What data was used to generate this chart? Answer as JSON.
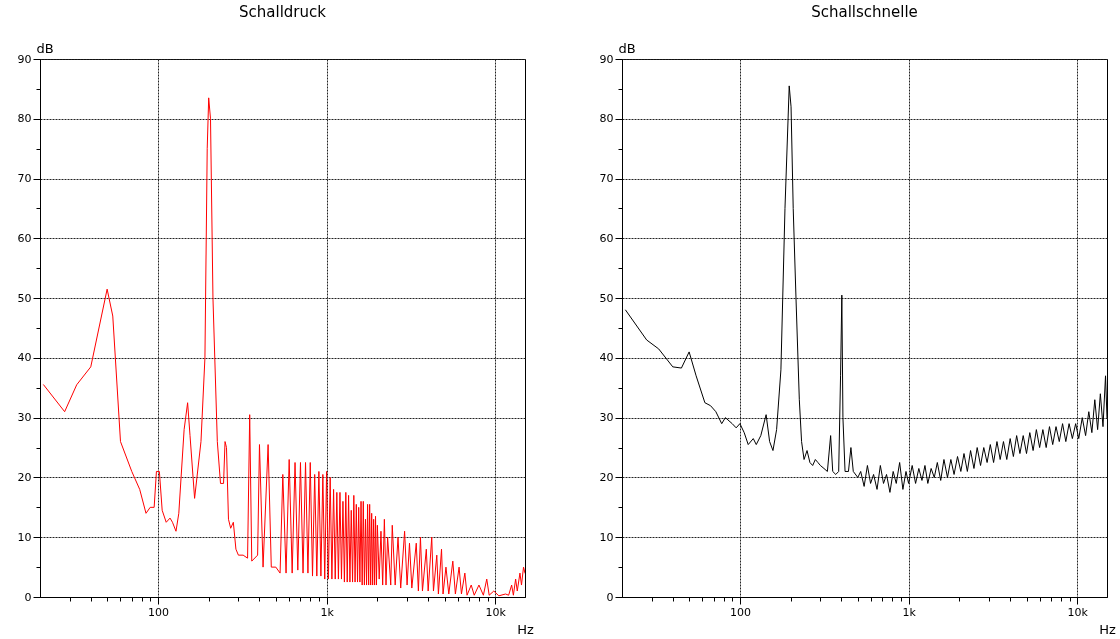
{
  "chart_data": [
    {
      "type": "line",
      "title": "Schalldruck",
      "xlabel": "Hz",
      "ylabel": "dB",
      "color": "#ff0000",
      "log": "x",
      "grid": true,
      "xlim": [
        20,
        15000
      ],
      "ylim": [
        0,
        90
      ],
      "xticks": [
        {
          "value": 30,
          "label": null
        },
        {
          "value": 40,
          "label": null
        },
        {
          "value": 50,
          "label": null
        },
        {
          "value": 60,
          "label": null
        },
        {
          "value": 70,
          "label": null
        },
        {
          "value": 80,
          "label": null
        },
        {
          "value": 90,
          "label": null
        },
        100,
        {
          "value": 200,
          "label": null
        },
        {
          "value": 300,
          "label": null
        },
        {
          "value": 400,
          "label": null
        },
        {
          "value": 500,
          "label": null
        },
        {
          "value": 600,
          "label": null
        },
        {
          "value": 700,
          "label": null
        },
        {
          "value": 800,
          "label": null
        },
        {
          "value": 900,
          "label": null
        },
        {
          "value": 1000,
          "label": "1k"
        },
        {
          "value": 2000,
          "label": null
        },
        {
          "value": 3000,
          "label": null
        },
        {
          "value": 4000,
          "label": null
        },
        {
          "value": 5000,
          "label": null
        },
        {
          "value": 6000,
          "label": null
        },
        {
          "value": 7000,
          "label": null
        },
        {
          "value": 8000,
          "label": null
        },
        {
          "value": 9000,
          "label": null
        },
        {
          "value": 10000,
          "label": "10k"
        }
      ],
      "yticks": [
        0,
        {
          "value": 5,
          "label": null
        },
        10,
        {
          "value": 15,
          "label": null
        },
        20,
        {
          "value": 25,
          "label": null
        },
        30,
        {
          "value": 35,
          "label": null
        },
        40,
        {
          "value": 45,
          "label": null
        },
        50,
        {
          "value": 55,
          "label": null
        },
        60,
        {
          "value": 65,
          "label": null
        },
        70,
        {
          "value": 75,
          "label": null
        },
        80,
        {
          "value": 85,
          "label": null
        },
        90
      ],
      "x": [
        21,
        28,
        33,
        40,
        50,
        54,
        60,
        70,
        78,
        85,
        90,
        95,
        98,
        102,
        106,
        112,
        118,
        122,
        128,
        133,
        143,
        150,
        155,
        165,
        180,
        190,
        196,
        200,
        205,
        212,
        225,
        235,
        245,
        250,
        255,
        262,
        270,
        280,
        290,
        300,
        320,
        340,
        350,
        360,
        390,
        400,
        420,
        450,
        470,
        500,
        530,
        550,
        575,
        600,
        625,
        650,
        675,
        700,
        725,
        750,
        775,
        800,
        825,
        850,
        875,
        900,
        925,
        950,
        975,
        1000,
        1025,
        1050,
        1075,
        1100,
        1125,
        1150,
        1175,
        1200,
        1225,
        1250,
        1275,
        1300,
        1325,
        1350,
        1375,
        1400,
        1425,
        1450,
        1475,
        1500,
        1525,
        1550,
        1575,
        1600,
        1625,
        1650,
        1675,
        1700,
        1725,
        1750,
        1775,
        1800,
        1825,
        1850,
        1875,
        1900,
        1925,
        1950,
        1975,
        2000,
        2050,
        2100,
        2150,
        2200,
        2250,
        2300,
        2400,
        2450,
        2550,
        2650,
        2750,
        2900,
        3000,
        3100,
        3200,
        3400,
        3500,
        3600,
        3700,
        3900,
        4000,
        4200,
        4300,
        4500,
        4600,
        4800,
        4900,
        5100,
        5300,
        5600,
        5800,
        6100,
        6300,
        6600,
        6800,
        7200,
        7500,
        8000,
        8500,
        8900,
        9200,
        9800,
        10500,
        11500,
        12000,
        12500,
        12800,
        13200,
        13500,
        14000,
        14300,
        14700,
        15000
      ],
      "values": [
        35.5,
        31,
        35.5,
        38.5,
        51.5,
        47,
        26,
        21,
        18,
        14,
        15,
        15,
        21,
        21,
        14.5,
        12.5,
        13.2,
        12.5,
        11,
        14,
        28,
        32.5,
        27,
        16.5,
        26,
        40,
        75,
        83.5,
        80,
        50,
        26,
        19,
        19,
        26,
        25,
        13,
        11.5,
        12.5,
        8,
        7,
        7,
        6.5,
        30.5,
        6,
        7,
        25.5,
        5,
        25.5,
        5,
        5,
        4,
        20.5,
        4,
        23,
        4,
        22.5,
        4.5,
        22.5,
        4,
        22.5,
        4,
        22.5,
        3.5,
        20.5,
        3.5,
        21,
        3.5,
        20.5,
        3,
        21,
        3,
        20,
        3,
        18,
        3,
        17.5,
        3,
        17.5,
        3,
        16,
        2.5,
        17.5,
        2.5,
        17,
        2.5,
        14.5,
        2.5,
        17,
        2.5,
        15.5,
        2.5,
        15,
        2.5,
        16,
        2,
        16,
        2,
        13,
        2,
        15.5,
        2,
        15.5,
        2,
        14,
        2,
        13,
        2,
        13.5,
        2,
        12,
        3,
        11,
        2,
        13,
        2,
        10,
        2,
        12,
        2,
        10,
        1.5,
        11,
        2,
        9,
        1.5,
        9,
        1,
        10,
        1,
        8,
        1,
        10,
        1,
        7,
        0.5,
        8,
        0.5,
        5,
        0.5,
        6,
        0.5,
        5,
        0.5,
        4,
        0.3,
        2,
        0.3,
        2,
        0.3,
        3,
        0.3,
        1,
        0.2,
        0.5,
        0.3,
        2,
        0.3,
        3,
        1,
        4,
        2,
        5,
        4
      ]
    },
    {
      "type": "line",
      "title": "Schallschnelle",
      "xlabel": "Hz",
      "ylabel": "dB",
      "color": "#000000",
      "log": "x",
      "grid": true,
      "xlim": [
        20,
        15000
      ],
      "ylim": [
        0,
        90
      ],
      "xticks": [
        {
          "value": 30,
          "label": null
        },
        {
          "value": 40,
          "label": null
        },
        {
          "value": 50,
          "label": null
        },
        {
          "value": 60,
          "label": null
        },
        {
          "value": 70,
          "label": null
        },
        {
          "value": 80,
          "label": null
        },
        {
          "value": 90,
          "label": null
        },
        100,
        {
          "value": 200,
          "label": null
        },
        {
          "value": 300,
          "label": null
        },
        {
          "value": 400,
          "label": null
        },
        {
          "value": 500,
          "label": null
        },
        {
          "value": 600,
          "label": null
        },
        {
          "value": 700,
          "label": null
        },
        {
          "value": 800,
          "label": null
        },
        {
          "value": 900,
          "label": null
        },
        {
          "value": 1000,
          "label": "1k"
        },
        {
          "value": 2000,
          "label": null
        },
        {
          "value": 3000,
          "label": null
        },
        {
          "value": 4000,
          "label": null
        },
        {
          "value": 5000,
          "label": null
        },
        {
          "value": 6000,
          "label": null
        },
        {
          "value": 7000,
          "label": null
        },
        {
          "value": 8000,
          "label": null
        },
        {
          "value": 9000,
          "label": null
        },
        {
          "value": 10000,
          "label": "10k"
        }
      ],
      "yticks": [
        0,
        {
          "value": 5,
          "label": null
        },
        10,
        {
          "value": 15,
          "label": null
        },
        20,
        {
          "value": 25,
          "label": null
        },
        30,
        {
          "value": 35,
          "label": null
        },
        40,
        {
          "value": 45,
          "label": null
        },
        50,
        {
          "value": 55,
          "label": null
        },
        60,
        {
          "value": 65,
          "label": null
        },
        70,
        {
          "value": 75,
          "label": null
        },
        80,
        {
          "value": 85,
          "label": null
        },
        90
      ],
      "x": [
        21,
        28,
        33,
        40,
        45,
        50,
        55,
        62,
        67,
        72,
        78,
        82,
        90,
        95,
        100,
        106,
        112,
        120,
        125,
        133,
        143,
        150,
        157,
        165,
        175,
        185,
        196,
        201,
        207,
        215,
        225,
        232,
        240,
        250,
        260,
        270,
        280,
        290,
        300,
        315,
        330,
        345,
        355,
        370,
        385,
        395,
        402,
        408,
        420,
        440,
        455,
        470,
        500,
        520,
        545,
        570,
        595,
        620,
        650,
        680,
        710,
        740,
        775,
        810,
        845,
        885,
        925,
        965,
        1000,
        1050,
        1100,
        1150,
        1200,
        1250,
        1300,
        1360,
        1420,
        1480,
        1550,
        1620,
        1700,
        1780,
        1860,
        1950,
        2040,
        2130,
        2230,
        2330,
        2440,
        2550,
        2670,
        2790,
        2920,
        3050,
        3190,
        3340,
        3490,
        3650,
        3820,
        4000,
        4180,
        4370,
        4570,
        4780,
        5000,
        5230,
        5470,
        5720,
        5980,
        6250,
        6540,
        6840,
        7150,
        7480,
        7820,
        8180,
        8550,
        8940,
        9350,
        9780,
        10200,
        10700,
        11200,
        11700,
        12200,
        12700,
        13200,
        13700,
        14200,
        14700,
        15000
      ],
      "values": [
        48,
        43,
        41.5,
        38.5,
        38.3,
        41,
        37,
        32.5,
        32,
        31,
        29,
        30,
        29,
        28.3,
        29,
        27.5,
        25.5,
        26.5,
        25.5,
        27,
        30.5,
        26,
        24.5,
        28,
        38,
        65,
        85.5,
        82,
        65,
        50,
        33,
        26,
        23,
        24.5,
        22.5,
        22,
        23,
        22.5,
        22,
        21.5,
        21,
        27,
        21,
        20.5,
        21,
        37,
        50.5,
        30,
        21,
        21,
        25,
        21,
        20,
        21,
        18.5,
        22,
        19,
        20.5,
        18,
        22,
        19,
        20.5,
        17.5,
        21,
        19,
        22.5,
        18,
        21,
        19,
        22,
        19,
        21.5,
        19.5,
        22,
        19,
        21.5,
        20,
        22.5,
        19.5,
        23,
        20,
        23,
        20.5,
        23.5,
        21,
        24,
        21,
        24.5,
        21.5,
        25,
        22,
        25,
        22.5,
        25.5,
        22.5,
        26,
        23,
        26,
        23,
        26.5,
        23.5,
        27,
        24,
        27,
        24,
        27.5,
        24.5,
        28,
        25,
        28,
        25,
        28.5,
        25.5,
        28.5,
        26,
        29,
        26,
        29,
        26.5,
        29,
        26.5,
        30,
        27,
        31,
        27.5,
        33,
        28,
        34,
        28.5,
        37,
        30
      ]
    }
  ]
}
